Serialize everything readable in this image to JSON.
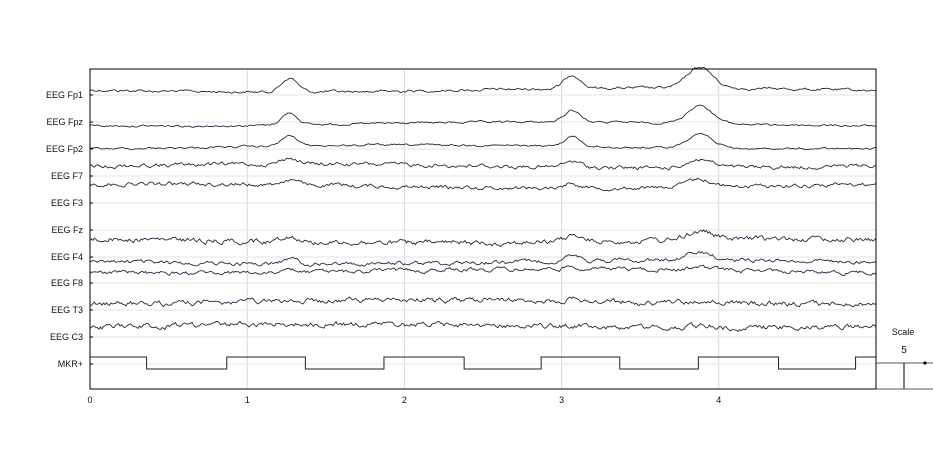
{
  "chart_data": {
    "type": "line",
    "xlim": [
      0,
      5
    ],
    "x_ticks": [
      "0",
      "1",
      "2",
      "3",
      "4"
    ],
    "grid": true,
    "channels": [
      "EEG Fp1",
      "EEG Fpz",
      "EEG Fp2",
      "EEG F7",
      "EEG F3",
      "EEG Fz",
      "EEG F4",
      "EEG F8",
      "EEG T3",
      "EEG C3",
      "MKR+"
    ],
    "frontal_peak_times_s": [
      1.27,
      3.07,
      3.88
    ],
    "marker_transitions_s": [
      0.36,
      0.87,
      1.37,
      1.87,
      2.38,
      2.87,
      3.37,
      3.87,
      4.38,
      4.87
    ],
    "scale": {
      "label": "Scale",
      "value": "5"
    },
    "colors": {
      "trace": "#2a2a40",
      "grid": "#d8d8d8",
      "axis": "#000000"
    }
  }
}
